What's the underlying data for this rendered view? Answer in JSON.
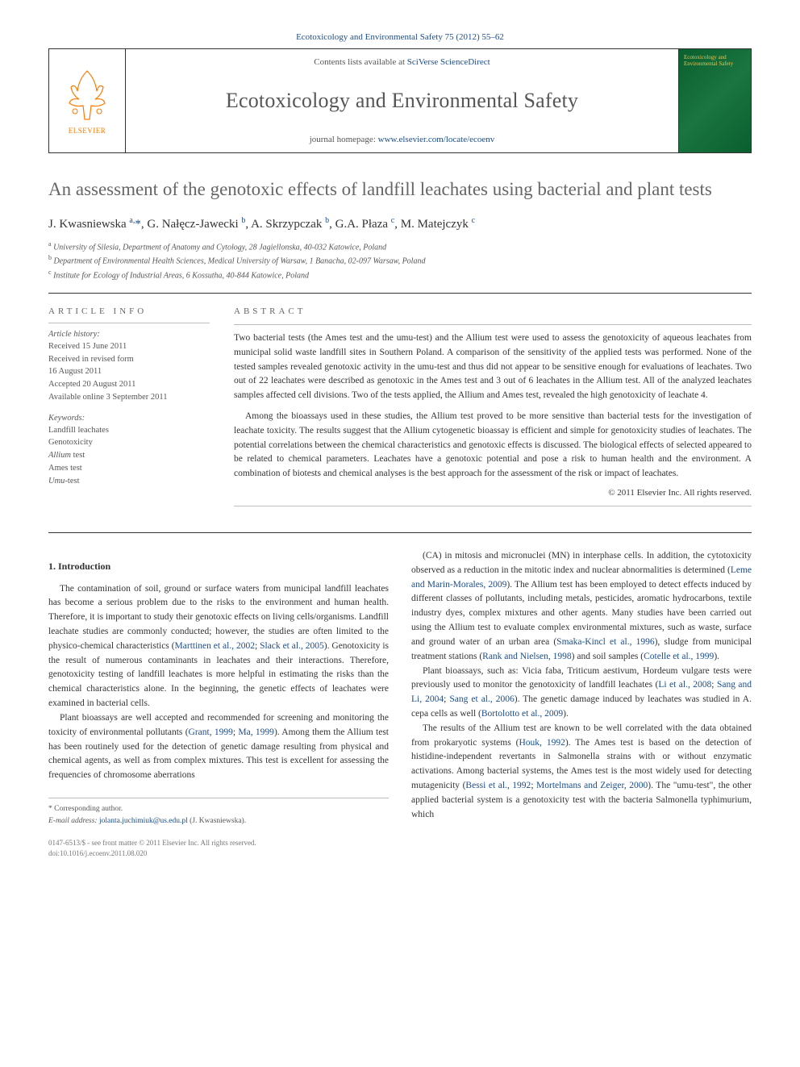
{
  "top_link": "Ecotoxicology and Environmental Safety 75 (2012) 55–62",
  "masthead": {
    "contents_prefix": "Contents lists available at ",
    "contents_link": "SciVerse ScienceDirect",
    "journal_name": "Ecotoxicology and Environmental Safety",
    "homepage_prefix": "journal homepage: ",
    "homepage_link": "www.elsevier.com/locate/ecoenv",
    "publisher": "ELSEVIER",
    "cover_text": "Ecotoxicology and Environmental Safety"
  },
  "article": {
    "title": "An assessment of the genotoxic effects of landfill leachates using bacterial and plant tests",
    "authors_html": "J. Kwasniewska <sup>a,</sup><span class=\"star\">*</span>, G. Nałęcz-Jawecki <sup>b</sup>, A. Skrzypczak <sup>b</sup>, G.A. Płaza <sup>c</sup>, M. Matejczyk <sup>c</sup>",
    "affiliations": [
      {
        "sup": "a",
        "text": "University of Silesia, Department of Anatomy and Cytology, 28 Jagiellonska, 40-032 Katowice, Poland"
      },
      {
        "sup": "b",
        "text": "Department of Environmental Health Sciences, Medical University of Warsaw, 1 Banacha, 02-097 Warsaw, Poland"
      },
      {
        "sup": "c",
        "text": "Institute for Ecology of Industrial Areas, 6 Kossutha, 40-844 Katowice, Poland"
      }
    ]
  },
  "meta": {
    "info_heading": "article info",
    "history_title": "Article history:",
    "history": [
      "Received 15 June 2011",
      "Received in revised form",
      "16 August 2011",
      "Accepted 20 August 2011",
      "Available online 3 September 2011"
    ],
    "keywords_title": "Keywords:",
    "keywords": [
      "Landfill leachates",
      "Genotoxicity",
      "Allium test",
      "Ames test",
      "Umu-test"
    ]
  },
  "abstract": {
    "heading": "abstract",
    "p1": "Two bacterial tests (the Ames test and the umu-test) and the Allium test were used to assess the genotoxicity of aqueous leachates from municipal solid waste landfill sites in Southern Poland. A comparison of the sensitivity of the applied tests was performed. None of the tested samples revealed genotoxic activity in the umu-test and thus did not appear to be sensitive enough for evaluations of leachates. Two out of 22 leachates were described as genotoxic in the Ames test and 3 out of 6 leachates in the Allium test. All of the analyzed leachates samples affected cell divisions. Two of the tests applied, the Allium and Ames test, revealed the high genotoxicity of leachate 4.",
    "p2": "Among the bioassays used in these studies, the Allium test proved to be more sensitive than bacterial tests for the investigation of leachate toxicity. The results suggest that the Allium cytogenetic bioassay is efficient and simple for genotoxicity studies of leachates. The potential correlations between the chemical characteristics and genotoxic effects is discussed. The biological effects of selected appeared to be related to chemical parameters. Leachates have a genotoxic potential and pose a risk to human health and the environment. A combination of biotests and chemical analyses is the best approach for the assessment of the risk or impact of leachates.",
    "copyright": "© 2011 Elsevier Inc. All rights reserved."
  },
  "body": {
    "section_heading": "1. Introduction",
    "left": {
      "p1": "The contamination of soil, ground or surface waters from municipal landfill leachates has become a serious problem due to the risks to the environment and human health. Therefore, it is important to study their genotoxic effects on living cells/organisms. Landfill leachate studies are commonly conducted; however, the studies are often limited to the physico-chemical characteristics (",
      "c1": "Marttinen et al., 2002",
      "p1b": "; ",
      "c2": "Slack et al., 2005",
      "p1c": "). Genotoxicity is the result of numerous contaminants in leachates and their interactions. Therefore, genotoxicity testing of landfill leachates is more helpful in estimating the risks than the chemical characteristics alone. In the beginning, the genetic effects of leachates were examined in bacterial cells.",
      "p2": "Plant bioassays are well accepted and recommended for screening and monitoring the toxicity of environmental pollutants (",
      "c3": "Grant, 1999",
      "p2b": "; ",
      "c4": "Ma, 1999",
      "p2c": "). Among them the Allium test has been routinely used for the detection of genetic damage resulting from physical and chemical agents, as well as from complex mixtures. This test is excellent for assessing the frequencies of chromosome aberrations"
    },
    "right": {
      "p1": "(CA) in mitosis and micronuclei (MN) in interphase cells. In addition, the cytotoxicity observed as a reduction in the mitotic index and nuclear abnormalities is determined (",
      "c1": "Leme and Marin-Morales, 2009",
      "p1b": "). The Allium test has been employed to detect effects induced by different classes of pollutants, including metals, pesticides, aromatic hydrocarbons, textile industry dyes, complex mixtures and other agents. Many studies have been carried out using the Allium test to evaluate complex environmental mixtures, such as waste, surface and ground water of an urban area (",
      "c2": "Smaka-Kincl et al., 1996",
      "p1c": "), sludge from municipal treatment stations (",
      "c3": "Rank and Nielsen, 1998",
      "p1d": ") and soil samples (",
      "c4": "Cotelle et al., 1999",
      "p1e": ").",
      "p2": "Plant bioassays, such as: Vicia faba, Triticum aestivum, Hordeum vulgare tests were previously used to monitor the genotoxicity of landfill leachates (",
      "c5": "Li et al., 2008",
      "p2b": "; ",
      "c6": "Sang and Li, 2004",
      "p2c": "; ",
      "c7": "Sang et al., 2006",
      "p2d": "). The genetic damage induced by leachates was studied in A. cepa cells as well (",
      "c8": "Bortolotto et al., 2009",
      "p2e": ").",
      "p3": "The results of the Allium test are known to be well correlated with the data obtained from prokaryotic systems (",
      "c9": "Houk, 1992",
      "p3b": "). The Ames test is based on the detection of histidine-independent revertants in Salmonella strains with or without enzymatic activations. Among bacterial systems, the Ames test is the most widely used for detecting mutagenicity (",
      "c10": "Bessi et al., 1992",
      "p3c": "; ",
      "c11": "Mortelmans and Zeiger, 2000",
      "p3d": "). The \"umu-test\", the other applied bacterial system is a genotoxicity test with the bacteria Salmonella typhimurium, which"
    }
  },
  "footnote": {
    "corr": "* Corresponding author.",
    "email_label": "E-mail address: ",
    "email": "jolanta.juchimiuk@us.edu.pl",
    "email_who": " (J. Kwasniewska)."
  },
  "bottom": {
    "line1": "0147-6513/$ - see front matter © 2011 Elsevier Inc. All rights reserved.",
    "line2": "doi:10.1016/j.ecoenv.2011.08.020"
  },
  "colors": {
    "link": "#1a4d8f",
    "orange": "#ff7a00",
    "text": "#333333",
    "title_gray": "#666666"
  }
}
